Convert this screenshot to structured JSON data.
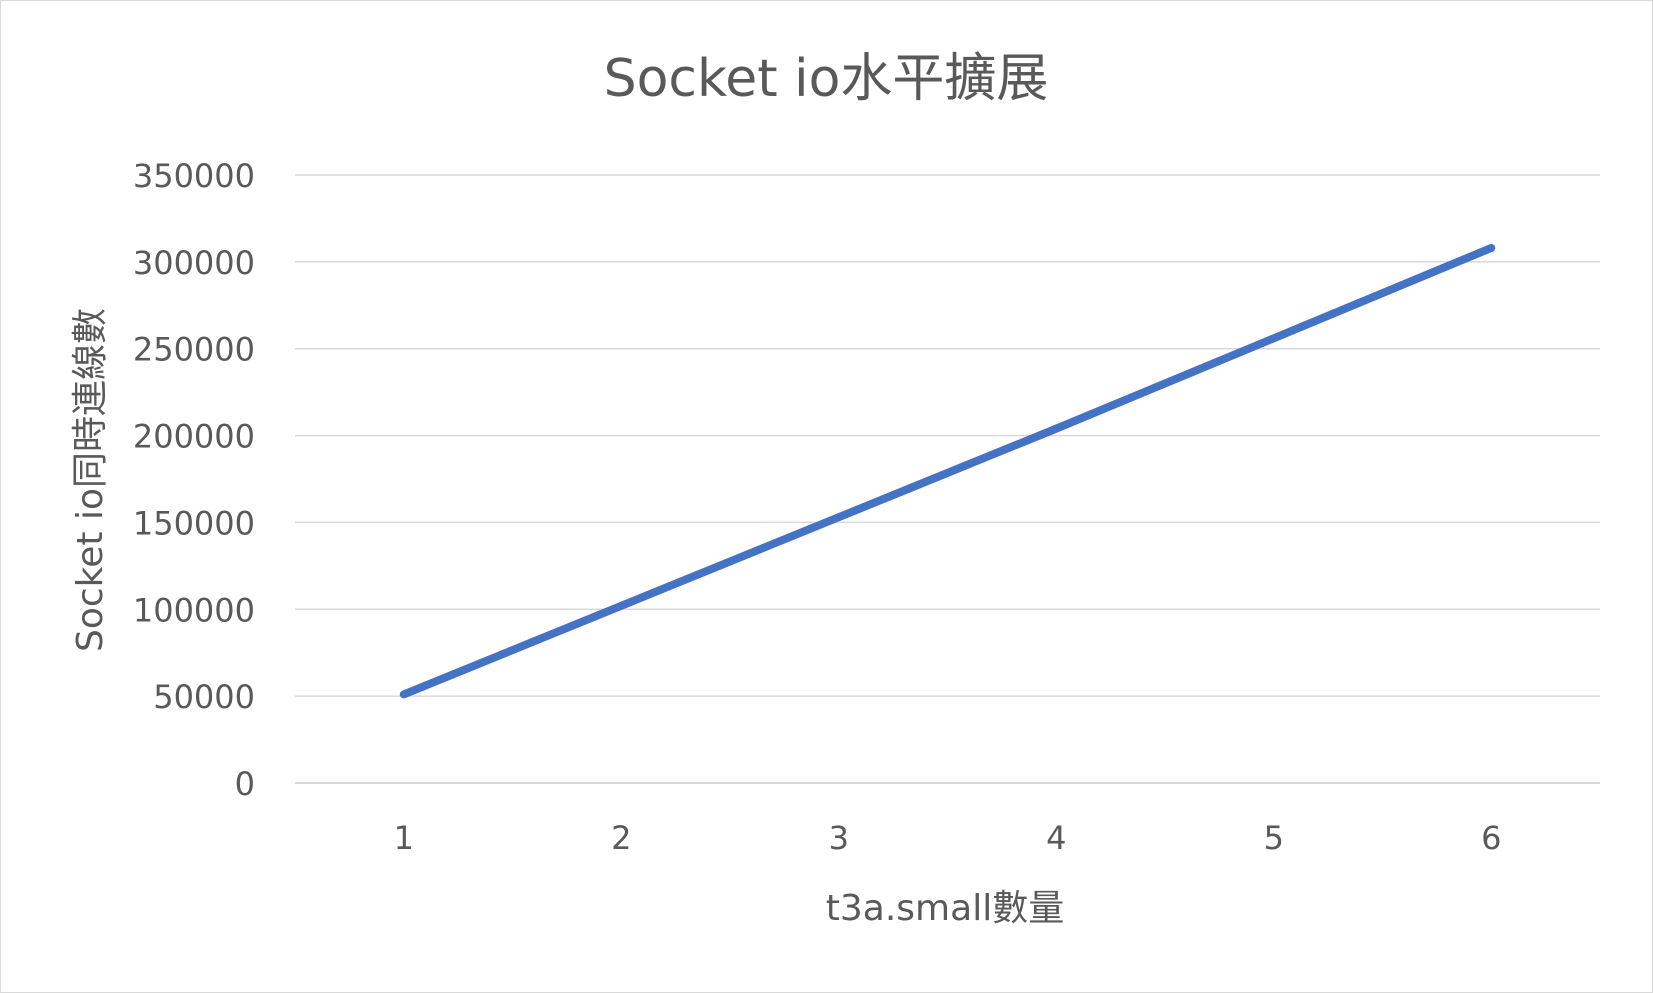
{
  "chart_data": {
    "type": "line",
    "title": "Socket io水平擴展",
    "xlabel": "t3a.small數量",
    "ylabel": "Socket io同時連線數",
    "categories": [
      "1",
      "2",
      "3",
      "4",
      "5",
      "6"
    ],
    "series": [
      {
        "values": [
          51000,
          102000,
          153000,
          204000,
          256000,
          308000
        ]
      }
    ],
    "yticks": [
      "0",
      "50000",
      "100000",
      "150000",
      "200000",
      "250000",
      "300000",
      "350000"
    ],
    "ylim": [
      0,
      350000
    ],
    "grid": true,
    "legend": "none",
    "line_color": "#4472C4",
    "grid_color": "#d9d9d9",
    "text_color": "#595959"
  }
}
